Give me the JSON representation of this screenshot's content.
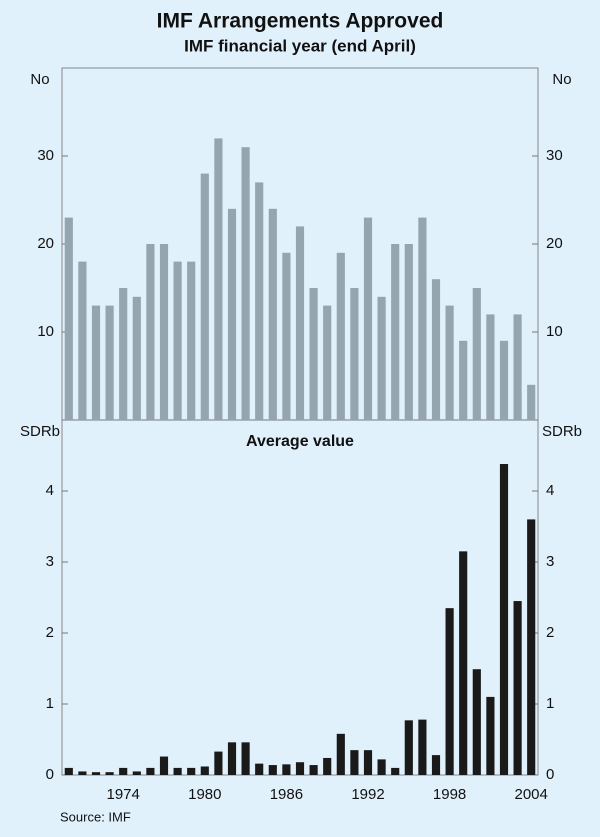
{
  "title": "IMF Arrangements Approved",
  "subtitle": "IMF financial year (end April)",
  "source": "Source: IMF",
  "chart_data": [
    {
      "type": "bar",
      "y_label": "No",
      "color": "#95a5b0",
      "x": [
        1970,
        1971,
        1972,
        1973,
        1974,
        1975,
        1976,
        1977,
        1978,
        1979,
        1980,
        1981,
        1982,
        1983,
        1984,
        1985,
        1986,
        1987,
        1988,
        1989,
        1990,
        1991,
        1992,
        1993,
        1994,
        1995,
        1996,
        1997,
        1998,
        1999,
        2000,
        2001,
        2002,
        2003,
        2004
      ],
      "values": [
        23,
        18,
        13,
        13,
        15,
        14,
        20,
        20,
        18,
        18,
        28,
        32,
        24,
        31,
        27,
        24,
        19,
        22,
        15,
        13,
        19,
        15,
        23,
        14,
        20,
        20,
        23,
        16,
        13,
        9,
        15,
        12,
        9,
        12,
        4
      ],
      "xlim": [
        1969.5,
        2004.5
      ],
      "ylim": [
        0,
        40
      ],
      "yticks": [
        10,
        20,
        30
      ],
      "grid": false
    },
    {
      "type": "bar",
      "title": "Average value",
      "y_label": "SDRb",
      "color": "#1a1a1a",
      "x": [
        1970,
        1971,
        1972,
        1973,
        1974,
        1975,
        1976,
        1977,
        1978,
        1979,
        1980,
        1981,
        1982,
        1983,
        1984,
        1985,
        1986,
        1987,
        1988,
        1989,
        1990,
        1991,
        1992,
        1993,
        1994,
        1995,
        1996,
        1997,
        1998,
        1999,
        2000,
        2001,
        2002,
        2003,
        2004
      ],
      "values": [
        0.1,
        0.05,
        0.04,
        0.04,
        0.1,
        0.05,
        0.1,
        0.26,
        0.1,
        0.1,
        0.12,
        0.33,
        0.46,
        0.46,
        0.16,
        0.14,
        0.15,
        0.18,
        0.14,
        0.24,
        0.58,
        0.35,
        0.35,
        0.22,
        0.1,
        0.77,
        0.78,
        0.28,
        2.35,
        3.15,
        1.49,
        1.1,
        4.38,
        2.45,
        3.6
      ],
      "xlim": [
        1969.5,
        2004.5
      ],
      "xticks": [
        1974,
        1980,
        1986,
        1992,
        1998,
        2004
      ],
      "ylim": [
        0,
        5
      ],
      "yticks": [
        0,
        1,
        2,
        3,
        4
      ],
      "grid": false
    }
  ]
}
